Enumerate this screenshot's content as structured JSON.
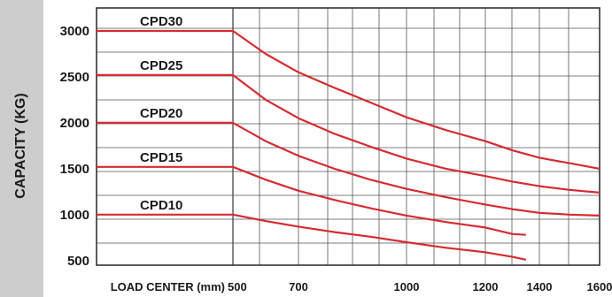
{
  "chart_data": {
    "type": "line",
    "ylabel": "CAPACITY (KG)",
    "xlabel": "LOAD CENTER (mm)",
    "x_ticks": [
      500,
      700,
      1000,
      1200,
      1400,
      1600
    ],
    "y_ticks": [
      500,
      1000,
      1500,
      2000,
      2500,
      3000
    ],
    "xlim": [
      400,
      1600
    ],
    "ylim": [
      450,
      3250
    ],
    "grid": true,
    "line_color": "#d62b32",
    "series": [
      {
        "name": "CPD30",
        "x": [
          400,
          500,
          600,
          700,
          800,
          900,
          1000,
          1100,
          1200,
          1300,
          1400,
          1500,
          1600
        ],
        "y": [
          3000,
          3000,
          2750,
          2550,
          2380,
          2220,
          2060,
          1920,
          1800,
          1700,
          1620,
          1560,
          1500
        ]
      },
      {
        "name": "CPD25",
        "x": [
          400,
          500,
          600,
          700,
          800,
          900,
          1000,
          1100,
          1200,
          1300,
          1400,
          1500,
          1600
        ],
        "y": [
          2520,
          2520,
          2250,
          2050,
          1880,
          1740,
          1610,
          1500,
          1420,
          1360,
          1310,
          1270,
          1240
        ]
      },
      {
        "name": "CPD20",
        "x": [
          400,
          500,
          600,
          700,
          800,
          900,
          1000,
          1100,
          1200,
          1300,
          1400,
          1500,
          1600
        ],
        "y": [
          2000,
          2000,
          1800,
          1640,
          1500,
          1380,
          1280,
          1190,
          1110,
          1060,
          1020,
          1000,
          990
        ]
      },
      {
        "name": "CPD15",
        "x": [
          400,
          500,
          600,
          700,
          800,
          900,
          1000,
          1100,
          1200,
          1300,
          1350
        ],
        "y": [
          1520,
          1520,
          1380,
          1260,
          1160,
          1070,
          990,
          920,
          860,
          790,
          780
        ]
      },
      {
        "name": "CPD10",
        "x": [
          400,
          500,
          600,
          700,
          800,
          900,
          1000,
          1100,
          1200,
          1300,
          1350
        ],
        "y": [
          1000,
          1000,
          930,
          870,
          810,
          760,
          700,
          640,
          590,
          540,
          510
        ]
      }
    ]
  }
}
